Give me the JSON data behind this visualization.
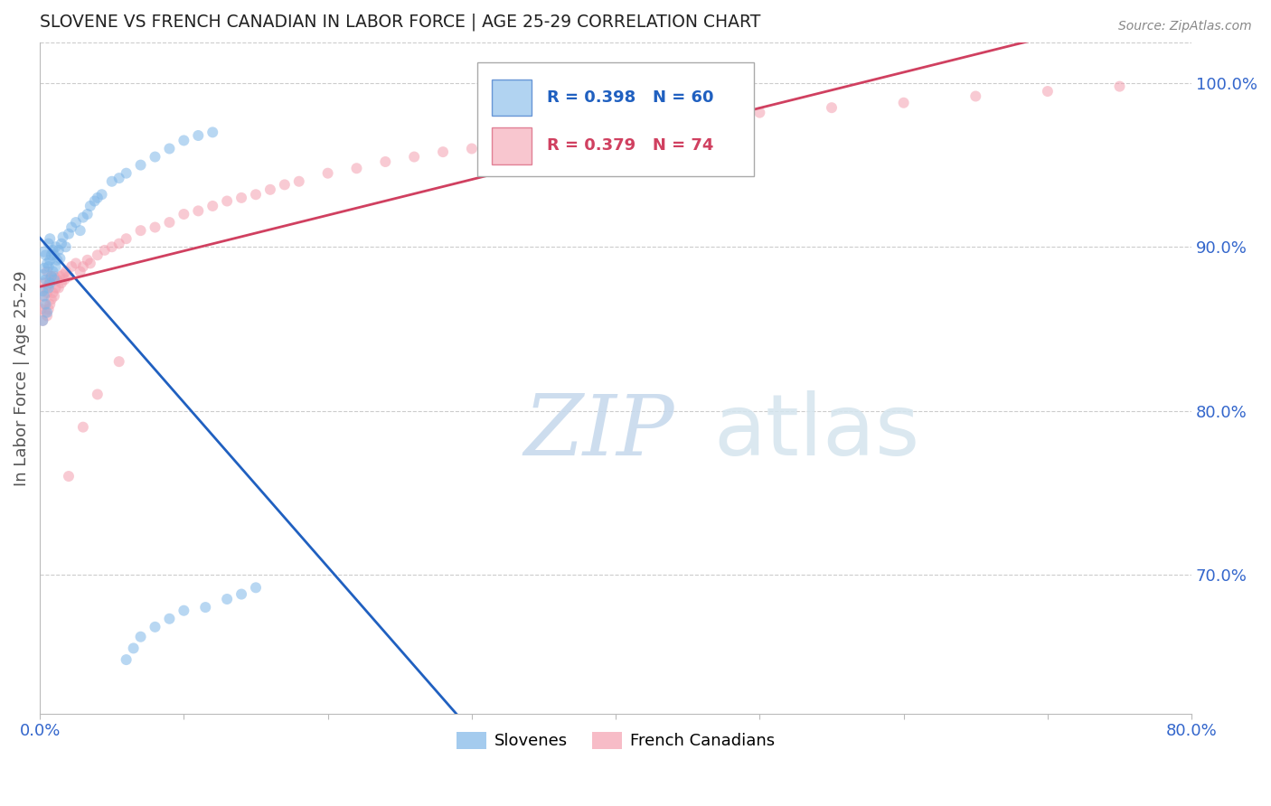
{
  "title": "SLOVENE VS FRENCH CANADIAN IN LABOR FORCE | AGE 25-29 CORRELATION CHART",
  "source": "Source: ZipAtlas.com",
  "ylabel": "In Labor Force | Age 25-29",
  "xlim": [
    0.0,
    0.8
  ],
  "ylim": [
    0.615,
    1.025
  ],
  "x_tick_positions": [
    0.0,
    0.1,
    0.2,
    0.3,
    0.4,
    0.5,
    0.6,
    0.7,
    0.8
  ],
  "x_tick_labels": [
    "0.0%",
    "",
    "",
    "",
    "",
    "",
    "",
    "",
    "80.0%"
  ],
  "y_ticks_right": [
    0.7,
    0.8,
    0.9,
    1.0
  ],
  "y_tick_labels_right": [
    "70.0%",
    "80.0%",
    "90.0%",
    "100.0%"
  ],
  "grid_color": "#cccccc",
  "background_color": "#ffffff",
  "slovene_color": "#7eb6e8",
  "french_color": "#f4a0b0",
  "slovene_line_color": "#2060c0",
  "french_line_color": "#d04060",
  "legend_slovene_label": "Slovenes",
  "legend_french_label": "French Canadians",
  "R_slovene": 0.398,
  "N_slovene": 60,
  "R_french": 0.379,
  "N_french": 74,
  "slovene_x": [
    0.002,
    0.002,
    0.002,
    0.003,
    0.003,
    0.003,
    0.004,
    0.004,
    0.004,
    0.005,
    0.005,
    0.006,
    0.006,
    0.006,
    0.007,
    0.007,
    0.007,
    0.008,
    0.008,
    0.009,
    0.009,
    0.01,
    0.01,
    0.011,
    0.011,
    0.012,
    0.013,
    0.014,
    0.015,
    0.016,
    0.018,
    0.02,
    0.022,
    0.025,
    0.028,
    0.03,
    0.033,
    0.035,
    0.038,
    0.04,
    0.043,
    0.05,
    0.055,
    0.06,
    0.07,
    0.08,
    0.09,
    0.1,
    0.11,
    0.12,
    0.06,
    0.065,
    0.07,
    0.08,
    0.09,
    0.1,
    0.115,
    0.13,
    0.14,
    0.15
  ],
  "slovene_y": [
    0.873,
    0.883,
    0.855,
    0.87,
    0.887,
    0.897,
    0.865,
    0.88,
    0.895,
    0.86,
    0.89,
    0.875,
    0.888,
    0.902,
    0.878,
    0.892,
    0.905,
    0.882,
    0.895,
    0.885,
    0.898,
    0.88,
    0.895,
    0.888,
    0.9,
    0.892,
    0.898,
    0.893,
    0.902,
    0.906,
    0.9,
    0.908,
    0.912,
    0.915,
    0.91,
    0.918,
    0.92,
    0.925,
    0.928,
    0.93,
    0.932,
    0.94,
    0.942,
    0.945,
    0.95,
    0.955,
    0.96,
    0.965,
    0.968,
    0.97,
    0.648,
    0.655,
    0.662,
    0.668,
    0.673,
    0.678,
    0.68,
    0.685,
    0.688,
    0.692
  ],
  "french_x": [
    0.001,
    0.002,
    0.002,
    0.003,
    0.003,
    0.004,
    0.004,
    0.005,
    0.005,
    0.005,
    0.006,
    0.006,
    0.007,
    0.007,
    0.008,
    0.008,
    0.009,
    0.01,
    0.01,
    0.011,
    0.012,
    0.013,
    0.014,
    0.015,
    0.016,
    0.017,
    0.018,
    0.02,
    0.022,
    0.025,
    0.028,
    0.03,
    0.033,
    0.035,
    0.04,
    0.045,
    0.05,
    0.055,
    0.06,
    0.07,
    0.08,
    0.09,
    0.1,
    0.11,
    0.12,
    0.13,
    0.14,
    0.15,
    0.16,
    0.17,
    0.18,
    0.2,
    0.22,
    0.24,
    0.26,
    0.28,
    0.3,
    0.32,
    0.34,
    0.36,
    0.38,
    0.4,
    0.42,
    0.45,
    0.5,
    0.55,
    0.6,
    0.65,
    0.7,
    0.75,
    0.02,
    0.03,
    0.04,
    0.055
  ],
  "french_y": [
    0.862,
    0.87,
    0.855,
    0.865,
    0.878,
    0.86,
    0.875,
    0.858,
    0.872,
    0.885,
    0.862,
    0.877,
    0.865,
    0.88,
    0.868,
    0.882,
    0.872,
    0.87,
    0.882,
    0.875,
    0.88,
    0.875,
    0.882,
    0.878,
    0.883,
    0.88,
    0.885,
    0.882,
    0.888,
    0.89,
    0.885,
    0.888,
    0.892,
    0.89,
    0.895,
    0.898,
    0.9,
    0.902,
    0.905,
    0.91,
    0.912,
    0.915,
    0.92,
    0.922,
    0.925,
    0.928,
    0.93,
    0.932,
    0.935,
    0.938,
    0.94,
    0.945,
    0.948,
    0.952,
    0.955,
    0.958,
    0.96,
    0.962,
    0.965,
    0.968,
    0.97,
    0.972,
    0.975,
    0.978,
    0.982,
    0.985,
    0.988,
    0.992,
    0.995,
    0.998,
    0.76,
    0.79,
    0.81,
    0.83
  ],
  "watermark_zip": "ZIP",
  "watermark_atlas": "atlas",
  "marker_size": 75,
  "alpha": 0.55
}
